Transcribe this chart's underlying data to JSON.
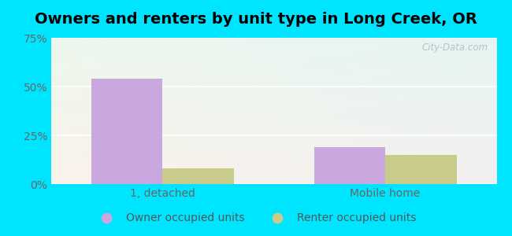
{
  "title": "Owners and renters by unit type in Long Creek, OR",
  "categories": [
    "1, detached",
    "Mobile home"
  ],
  "owner_values": [
    54.0,
    19.0
  ],
  "renter_values": [
    8.0,
    15.0
  ],
  "owner_color": "#c9a8e0",
  "renter_color": "#c8cb8a",
  "ylim": [
    0,
    75
  ],
  "yticks": [
    0,
    25,
    50,
    75
  ],
  "yticklabels": [
    "0%",
    "25%",
    "50%",
    "75%"
  ],
  "bar_width": 0.32,
  "bg_top_color": "#e8f5e8",
  "bg_bottom_color": "#f5faf5",
  "bg_right_color": "#e8f0f5",
  "outer_bg": "#00e5ff",
  "watermark": "City-Data.com",
  "legend_labels": [
    "Owner occupied units",
    "Renter occupied units"
  ],
  "title_fontsize": 14,
  "tick_fontsize": 10,
  "legend_fontsize": 10,
  "axis_bg_left": "#daeeda",
  "axis_bg_right": "#e8eef5"
}
